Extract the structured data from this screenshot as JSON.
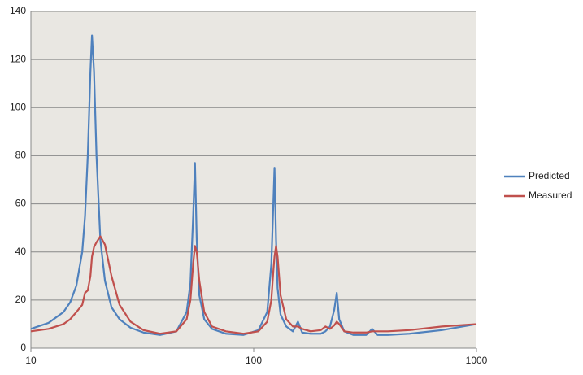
{
  "chart_data": {
    "type": "line",
    "x": [
      10,
      12,
      14,
      15,
      16,
      17,
      17.5,
      18,
      18.5,
      18.8,
      19.2,
      19.7,
      20.5,
      21.5,
      23,
      25,
      28,
      32,
      38,
      45,
      50,
      52,
      53.5,
      54.5,
      55.5,
      57,
      60,
      65,
      75,
      90,
      105,
      115,
      120,
      122.5,
      124,
      126,
      128,
      132,
      140,
      150,
      158,
      165,
      180,
      200,
      210,
      220,
      230,
      236,
      242,
      255,
      280,
      320,
      340,
      360,
      400,
      500,
      700,
      1000
    ],
    "series": [
      {
        "name": "Predicted",
        "color": "#4f81bd",
        "values": [
          8,
          10.5,
          15,
          19,
          26,
          40,
          55,
          80,
          115,
          130,
          115,
          80,
          45,
          28,
          17,
          12,
          8.5,
          6.5,
          5.5,
          7,
          15,
          27,
          55,
          77,
          45,
          22,
          12,
          8,
          6,
          5.5,
          7.5,
          15,
          35,
          60,
          75,
          45,
          25,
          14,
          9,
          7,
          11,
          6.5,
          6,
          6,
          7,
          9,
          16,
          23,
          12,
          7,
          5.5,
          5.5,
          8,
          5.5,
          5.5,
          6,
          7.5,
          10
        ]
      },
      {
        "name": "Measured",
        "color": "#c0504d",
        "values": [
          7,
          8,
          10,
          12,
          15,
          18,
          23,
          24,
          30,
          38,
          42,
          44,
          46.5,
          43,
          30,
          18,
          11,
          7.5,
          6,
          7,
          12,
          20,
          35,
          42.5,
          40,
          28,
          15,
          9,
          7,
          6,
          7,
          11,
          20,
          32,
          38,
          42.5,
          38,
          22,
          12,
          9,
          9,
          8,
          7,
          7.5,
          9,
          8,
          9.5,
          11,
          10,
          7,
          6.5,
          6.5,
          7,
          7,
          7,
          7.5,
          9,
          10
        ]
      }
    ],
    "xlim": [
      10,
      1000
    ],
    "xticks": [
      10,
      100,
      1000
    ],
    "xscale": "log",
    "ylim": [
      0,
      140
    ],
    "yticks": [
      0,
      20,
      40,
      60,
      80,
      100,
      120,
      140
    ],
    "grid": true,
    "legend": "right"
  }
}
